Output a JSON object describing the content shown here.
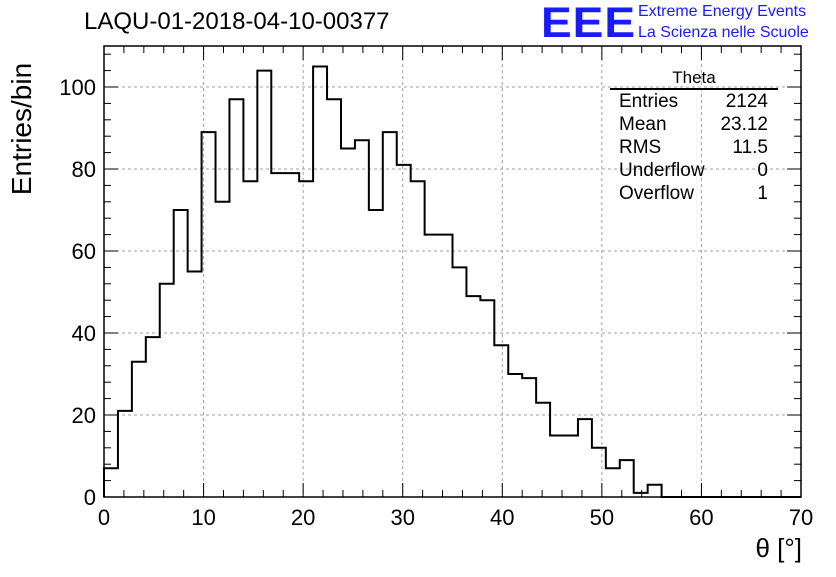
{
  "header": {
    "title": "LAQU-01-2018-04-10-00377",
    "logo": "EEE",
    "logo_line1": "Extreme Energy Events",
    "logo_line2": "La Scienza nelle Scuole"
  },
  "stats_box": {
    "title": "Theta",
    "rows": [
      {
        "label": "Entries",
        "value": "2124"
      },
      {
        "label": "Mean",
        "value": "23.12"
      },
      {
        "label": "RMS",
        "value": "11.5"
      },
      {
        "label": "Underflow",
        "value": "0"
      },
      {
        "label": "Overflow",
        "value": "1"
      }
    ]
  },
  "colors": {
    "histogram": "#000000",
    "grid": "#a0a0a0",
    "logo": "#1a1aff"
  },
  "chart_data": {
    "type": "histogram",
    "title": "LAQU-01-2018-04-10-00377",
    "xlabel": "θ [°]",
    "ylabel": "Entries/bin",
    "xlim": [
      0,
      70
    ],
    "ylim": [
      0,
      110
    ],
    "grid": true,
    "x_ticks": [
      0,
      10,
      20,
      30,
      40,
      50,
      60,
      70
    ],
    "y_ticks": [
      0,
      20,
      40,
      60,
      80,
      100
    ],
    "bin_width": 1.4,
    "bin_edges_start": 0,
    "values": [
      7,
      21,
      33,
      39,
      52,
      70,
      55,
      89,
      72,
      97,
      77,
      104,
      79,
      79,
      77,
      105,
      97,
      85,
      87,
      70,
      89,
      81,
      77,
      64,
      64,
      56,
      49,
      48,
      37,
      30,
      29,
      23,
      15,
      15,
      19,
      12,
      7,
      9,
      1,
      3,
      0,
      0,
      0,
      0,
      0,
      0,
      0,
      0,
      0,
      0
    ],
    "legend": "top-right"
  }
}
